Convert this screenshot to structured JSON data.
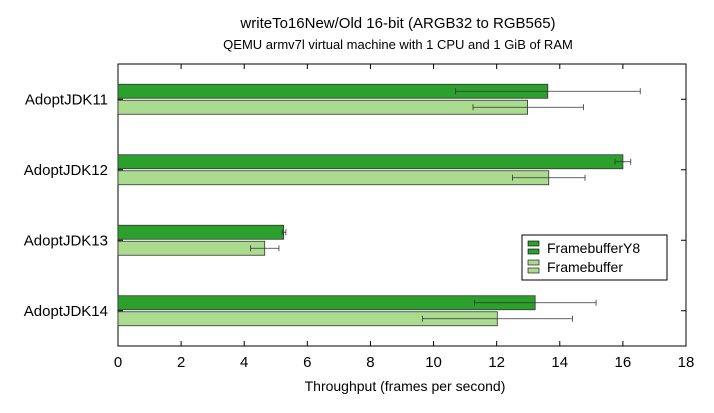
{
  "chart_data": {
    "type": "bar",
    "orientation": "horizontal",
    "title": "writeTo16New/Old 16-bit (ARGB32 to RGB565)",
    "subtitle": "QEMU armv7l virtual machine with 1 CPU and 1 GiB of RAM",
    "xlabel": "Throughput (frames per second)",
    "ylabel": "",
    "xlim": [
      0,
      18
    ],
    "xticks": [
      "0",
      "2",
      "4",
      "6",
      "8",
      "10",
      "12",
      "14",
      "16",
      "18"
    ],
    "grid": false,
    "legend_position": "right",
    "categories": [
      "AdoptJDK11",
      "AdoptJDK12",
      "AdoptJDK13",
      "AdoptJDK14"
    ],
    "series": [
      {
        "name": "FramebufferY8",
        "color": "#2ca02c",
        "values": [
          13.62,
          16.0,
          5.25,
          13.22
        ],
        "error_low": [
          10.7,
          15.75,
          5.2,
          11.3
        ],
        "error_high": [
          16.55,
          16.25,
          5.32,
          15.15
        ]
      },
      {
        "name": "Framebuffer",
        "color": "#aadb8f",
        "values": [
          12.98,
          13.65,
          4.65,
          12.02
        ],
        "error_low": [
          11.25,
          12.5,
          4.2,
          9.65
        ],
        "error_high": [
          14.75,
          14.8,
          5.1,
          14.4
        ]
      }
    ]
  }
}
